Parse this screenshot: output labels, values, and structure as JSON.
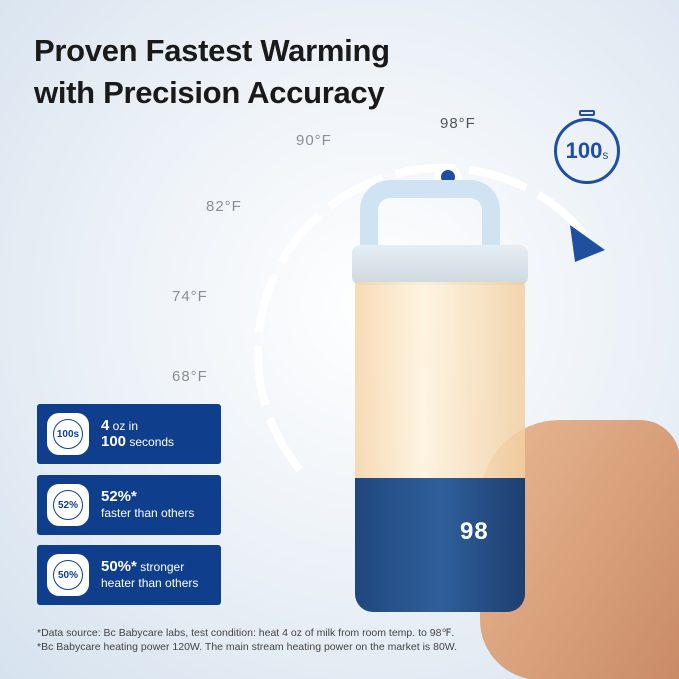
{
  "headline": {
    "line1": "Proven Fastest Warming",
    "line2": "with Precision Accuracy"
  },
  "temperatures": [
    "68°F",
    "74°F",
    "82°F",
    "90°F",
    "98°F"
  ],
  "timer": {
    "value": "100",
    "unit": "s"
  },
  "device_display": "98",
  "features": [
    {
      "icon": "stopwatch-icon",
      "icon_text": "100s",
      "bold": "4",
      "text1": " oz in",
      "bold2": "100",
      "text2": " seconds"
    },
    {
      "icon": "speed-arrow-icon",
      "icon_text": "52%",
      "bold": "52%*",
      "text1": "",
      "bold2": "",
      "text2": "faster than others"
    },
    {
      "icon": "thermometer-icon",
      "icon_text": "50%",
      "bold": "50%*",
      "text1": " stronger",
      "bold2": "",
      "text2": "heater than others"
    }
  ],
  "footnotes": [
    "*Data source: Bc Babycare labs, test condition: heat 4 oz of milk from room temp. to 98℉.",
    "*Bc Babycare heating power 120W. The main stream heating power on the market is 80W."
  ],
  "colors": {
    "brand_blue": "#0f3f8c",
    "accent": "#1f4fa0"
  }
}
